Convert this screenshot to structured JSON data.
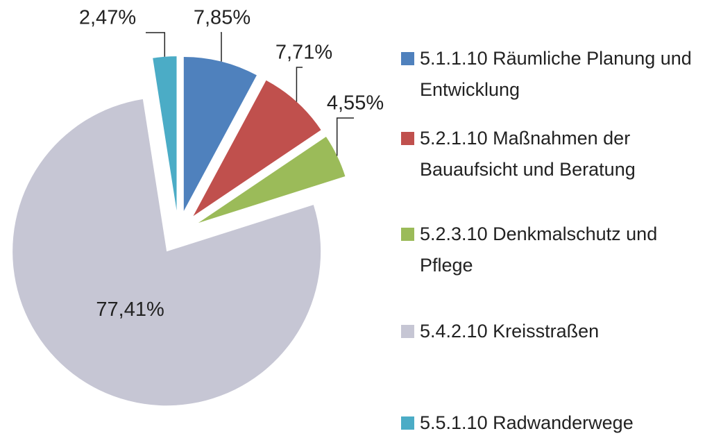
{
  "chart_data": {
    "type": "pie",
    "categories": [
      "5.1.1.10 Räumliche Planung und Entwicklung",
      "5.2.1.10 Maßnahmen der Bauaufsicht und Beratung",
      "5.2.3.10 Denkmalschutz und Pflege",
      "5.4.2.10 Kreisstraßen",
      "5.5.1.10 Radwanderwege"
    ],
    "values": [
      7.85,
      7.71,
      4.55,
      77.41,
      2.47
    ],
    "value_labels": [
      "7,85%",
      "7,71%",
      "4,55%",
      "77,41%",
      "2,47%"
    ],
    "colors": [
      "#4f81bd",
      "#c0504d",
      "#9bbb59",
      "#c6c6d4",
      "#4bacc6"
    ],
    "legend": "right"
  }
}
